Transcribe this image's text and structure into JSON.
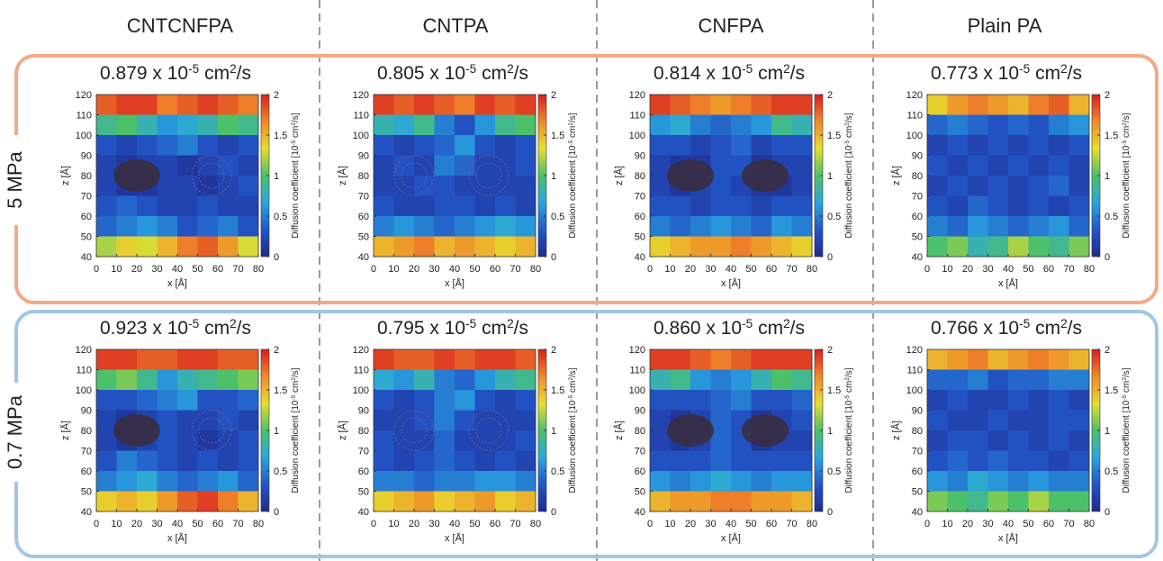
{
  "columns": [
    "CNTCNFPA",
    "CNTPA",
    "CNFPA",
    "Plain PA"
  ],
  "rows": [
    "5 MPa",
    "0.7 MPa"
  ],
  "chart_data": [
    {
      "type": "heatmap",
      "title": [
        "0.879 x 10",
        "-5",
        " cm",
        "2",
        "/s"
      ],
      "xlabel": "x [Å]",
      "ylabel": "z [Å]",
      "x": [
        5,
        15,
        25,
        35,
        45,
        55,
        65,
        75
      ],
      "y": [
        115,
        105,
        95,
        85,
        75,
        65,
        55,
        45
      ],
      "values": [
        [
          1.8,
          1.9,
          1.9,
          1.7,
          1.8,
          1.9,
          1.8,
          1.7
        ],
        [
          0.9,
          1.0,
          0.8,
          0.6,
          0.7,
          0.8,
          1.0,
          0.9
        ],
        [
          0.3,
          0.2,
          0.3,
          0.4,
          0.5,
          0.3,
          0.2,
          0.3
        ],
        [
          0.2,
          0.1,
          0.2,
          0.2,
          0.1,
          0.2,
          0.3,
          0.2
        ],
        [
          0.2,
          0.1,
          0.1,
          0.2,
          0.2,
          0.1,
          0.2,
          0.3
        ],
        [
          0.3,
          0.4,
          0.3,
          0.2,
          0.2,
          0.3,
          0.2,
          0.2
        ],
        [
          0.4,
          0.5,
          0.6,
          0.5,
          0.3,
          0.4,
          0.5,
          0.3
        ],
        [
          1.2,
          1.4,
          1.3,
          1.5,
          1.7,
          1.8,
          1.6,
          1.3
        ]
      ],
      "xlim": [
        0,
        80
      ],
      "xticks": [
        0,
        10,
        20,
        30,
        40,
        50,
        60,
        70,
        80
      ],
      "ylim": [
        40,
        120
      ],
      "yticks": [
        40,
        50,
        60,
        70,
        80,
        90,
        100,
        110,
        120
      ],
      "clim": [
        0,
        2
      ],
      "cticks": [
        0,
        0.5,
        1,
        1.5,
        2
      ],
      "clabel": [
        "Diffusion coefficient [10",
        "-5",
        " cm",
        "2",
        "/s]"
      ],
      "colormap": [
        "#1f2a8c",
        "#2256c8",
        "#2aa6de",
        "#4cc16a",
        "#e6df2e",
        "#f0892a",
        "#d71f1f"
      ]
    },
    {
      "type": "heatmap",
      "title": [
        "0.805 x 10",
        "-5",
        " cm",
        "2",
        "/s"
      ],
      "xlabel": "x [Å]",
      "ylabel": "z [Å]",
      "x": [
        5,
        15,
        25,
        35,
        45,
        55,
        65,
        75
      ],
      "y": [
        115,
        105,
        95,
        85,
        75,
        65,
        55,
        45
      ],
      "values": [
        [
          1.9,
          1.8,
          1.9,
          1.8,
          1.7,
          1.9,
          1.8,
          1.9
        ],
        [
          0.8,
          0.7,
          0.9,
          0.5,
          0.3,
          0.6,
          0.9,
          1.0
        ],
        [
          0.3,
          0.2,
          0.3,
          0.4,
          0.6,
          0.3,
          0.2,
          0.3
        ],
        [
          0.2,
          0.3,
          0.2,
          0.5,
          0.4,
          0.2,
          0.2,
          0.3
        ],
        [
          0.2,
          0.2,
          0.3,
          0.3,
          0.2,
          0.2,
          0.2,
          0.2
        ],
        [
          0.3,
          0.2,
          0.2,
          0.3,
          0.3,
          0.2,
          0.3,
          0.2
        ],
        [
          0.5,
          0.6,
          0.5,
          0.4,
          0.5,
          0.6,
          0.7,
          0.6
        ],
        [
          1.5,
          1.6,
          1.7,
          1.5,
          1.6,
          1.5,
          1.4,
          1.5
        ]
      ],
      "xlim": [
        0,
        80
      ],
      "xticks": [
        0,
        10,
        20,
        30,
        40,
        50,
        60,
        70,
        80
      ],
      "ylim": [
        40,
        120
      ],
      "yticks": [
        40,
        50,
        60,
        70,
        80,
        90,
        100,
        110,
        120
      ],
      "clim": [
        0,
        2
      ],
      "cticks": [
        0,
        0.5,
        1,
        1.5,
        2
      ],
      "clabel": [
        "Diffusion coefficient [10",
        "-5",
        " cm",
        "2",
        "/s]"
      ],
      "colormap": [
        "#1f2a8c",
        "#2256c8",
        "#2aa6de",
        "#4cc16a",
        "#e6df2e",
        "#f0892a",
        "#d71f1f"
      ]
    },
    {
      "type": "heatmap",
      "title": [
        "0.814 x 10",
        "-5",
        " cm",
        "2",
        "/s"
      ],
      "xlabel": "x [Å]",
      "ylabel": "z [Å]",
      "x": [
        5,
        15,
        25,
        35,
        45,
        55,
        65,
        75
      ],
      "y": [
        115,
        105,
        95,
        85,
        75,
        65,
        55,
        45
      ],
      "values": [
        [
          1.9,
          1.8,
          1.7,
          1.6,
          1.7,
          1.8,
          1.9,
          1.9
        ],
        [
          0.6,
          0.7,
          0.5,
          0.4,
          0.5,
          0.6,
          0.9,
          0.8
        ],
        [
          0.3,
          0.3,
          0.2,
          0.3,
          0.4,
          0.2,
          0.3,
          0.3
        ],
        [
          0.2,
          0.1,
          0.1,
          0.3,
          0.3,
          0.1,
          0.2,
          0.2
        ],
        [
          0.2,
          0.1,
          0.2,
          0.3,
          0.2,
          0.1,
          0.1,
          0.2
        ],
        [
          0.3,
          0.3,
          0.2,
          0.3,
          0.3,
          0.2,
          0.3,
          0.3
        ],
        [
          0.5,
          0.4,
          0.5,
          0.6,
          0.5,
          0.4,
          0.6,
          0.5
        ],
        [
          1.4,
          1.5,
          1.6,
          1.6,
          1.7,
          1.6,
          1.5,
          1.4
        ]
      ],
      "xlim": [
        0,
        80
      ],
      "xticks": [
        0,
        10,
        20,
        30,
        40,
        50,
        60,
        70,
        80
      ],
      "ylim": [
        40,
        120
      ],
      "yticks": [
        40,
        50,
        60,
        70,
        80,
        90,
        100,
        110,
        120
      ],
      "clim": [
        0,
        2
      ],
      "cticks": [
        0,
        0.5,
        1,
        1.5,
        2
      ],
      "clabel": [
        "Diffusion coefficient [10",
        "-5",
        " cm",
        "2",
        "/s]"
      ],
      "colormap": [
        "#1f2a8c",
        "#2256c8",
        "#2aa6de",
        "#4cc16a",
        "#e6df2e",
        "#f0892a",
        "#d71f1f"
      ]
    },
    {
      "type": "heatmap",
      "title": [
        "0.773 x 10",
        "-5",
        " cm",
        "2",
        "/s"
      ],
      "xlabel": "x [Å]",
      "ylabel": "z [Å]",
      "x": [
        5,
        15,
        25,
        35,
        45,
        55,
        65,
        75
      ],
      "y": [
        115,
        105,
        95,
        85,
        75,
        65,
        55,
        45
      ],
      "values": [
        [
          1.4,
          1.6,
          1.7,
          1.6,
          1.5,
          1.7,
          1.8,
          1.5
        ],
        [
          0.4,
          0.5,
          0.4,
          0.3,
          0.4,
          0.3,
          0.5,
          0.6
        ],
        [
          0.2,
          0.3,
          0.2,
          0.3,
          0.2,
          0.3,
          0.2,
          0.3
        ],
        [
          0.3,
          0.2,
          0.3,
          0.2,
          0.3,
          0.2,
          0.3,
          0.2
        ],
        [
          0.2,
          0.3,
          0.2,
          0.3,
          0.2,
          0.3,
          0.4,
          0.2
        ],
        [
          0.3,
          0.2,
          0.4,
          0.3,
          0.2,
          0.3,
          0.2,
          0.3
        ],
        [
          0.5,
          0.4,
          0.6,
          0.5,
          0.4,
          0.5,
          0.6,
          0.4
        ],
        [
          1.0,
          1.1,
          0.8,
          0.9,
          1.2,
          1.0,
          0.9,
          1.1
        ]
      ],
      "xlim": [
        0,
        80
      ],
      "xticks": [
        0,
        10,
        20,
        30,
        40,
        50,
        60,
        70,
        80
      ],
      "ylim": [
        40,
        120
      ],
      "yticks": [
        40,
        50,
        60,
        70,
        80,
        90,
        100,
        110,
        120
      ],
      "clim": [
        0,
        2
      ],
      "cticks": [
        0,
        0.5,
        1,
        1.5,
        2
      ],
      "clabel": [
        "Diffusion coefficient [10",
        "-5",
        " cm",
        "2",
        "/s]"
      ],
      "colormap": [
        "#1f2a8c",
        "#2256c8",
        "#2aa6de",
        "#4cc16a",
        "#e6df2e",
        "#f0892a",
        "#d71f1f"
      ]
    },
    {
      "type": "heatmap",
      "title": [
        "0.923 x 10",
        "-5",
        " cm",
        "2",
        "/s"
      ],
      "xlabel": "x [Å]",
      "ylabel": "z [Å]",
      "x": [
        5,
        15,
        25,
        35,
        45,
        55,
        65,
        75
      ],
      "y": [
        115,
        105,
        95,
        85,
        75,
        65,
        55,
        45
      ],
      "values": [
        [
          1.9,
          1.9,
          1.8,
          1.8,
          1.9,
          1.9,
          1.8,
          1.8
        ],
        [
          1.0,
          1.1,
          0.9,
          0.6,
          0.8,
          0.9,
          1.0,
          1.1
        ],
        [
          0.3,
          0.3,
          0.4,
          0.5,
          0.6,
          0.3,
          0.3,
          0.4
        ],
        [
          0.2,
          0.1,
          0.2,
          0.3,
          0.2,
          0.2,
          0.3,
          0.2
        ],
        [
          0.2,
          0.1,
          0.2,
          0.3,
          0.2,
          0.1,
          0.2,
          0.3
        ],
        [
          0.3,
          0.5,
          0.4,
          0.3,
          0.2,
          0.3,
          0.2,
          0.3
        ],
        [
          0.5,
          0.6,
          0.7,
          0.5,
          0.4,
          0.5,
          0.6,
          0.4
        ],
        [
          1.4,
          1.5,
          1.4,
          1.6,
          1.8,
          1.9,
          1.7,
          1.5
        ]
      ],
      "xlim": [
        0,
        80
      ],
      "xticks": [
        0,
        10,
        20,
        30,
        40,
        50,
        60,
        70,
        80
      ],
      "ylim": [
        40,
        120
      ],
      "yticks": [
        40,
        50,
        60,
        70,
        80,
        90,
        100,
        110,
        120
      ],
      "clim": [
        0,
        2
      ],
      "cticks": [
        0,
        0.5,
        1,
        1.5,
        2
      ],
      "clabel": [
        "Diffusion coefficient [10",
        "-5",
        " cm",
        "2",
        "/s]"
      ],
      "colormap": [
        "#1f2a8c",
        "#2256c8",
        "#2aa6de",
        "#4cc16a",
        "#e6df2e",
        "#f0892a",
        "#d71f1f"
      ]
    },
    {
      "type": "heatmap",
      "title": [
        "0.795 x 10",
        "-5",
        " cm",
        "2",
        "/s"
      ],
      "xlabel": "x [Å]",
      "ylabel": "z [Å]",
      "x": [
        5,
        15,
        25,
        35,
        45,
        55,
        65,
        75
      ],
      "y": [
        115,
        105,
        95,
        85,
        75,
        65,
        55,
        45
      ],
      "values": [
        [
          1.9,
          1.8,
          1.8,
          1.9,
          1.8,
          1.9,
          1.9,
          1.8
        ],
        [
          0.7,
          0.6,
          0.8,
          0.5,
          0.4,
          0.6,
          0.8,
          0.9
        ],
        [
          0.3,
          0.2,
          0.3,
          0.5,
          0.6,
          0.3,
          0.2,
          0.3
        ],
        [
          0.2,
          0.2,
          0.3,
          0.5,
          0.3,
          0.2,
          0.2,
          0.2
        ],
        [
          0.3,
          0.2,
          0.2,
          0.4,
          0.2,
          0.2,
          0.2,
          0.3
        ],
        [
          0.3,
          0.2,
          0.3,
          0.4,
          0.3,
          0.2,
          0.3,
          0.2
        ],
        [
          0.5,
          0.5,
          0.4,
          0.5,
          0.5,
          0.6,
          0.6,
          0.5
        ],
        [
          1.4,
          1.5,
          1.6,
          1.4,
          1.5,
          1.6,
          1.4,
          1.5
        ]
      ],
      "xlim": [
        0,
        80
      ],
      "xticks": [
        0,
        10,
        20,
        30,
        40,
        50,
        60,
        70,
        80
      ],
      "ylim": [
        40,
        120
      ],
      "yticks": [
        40,
        50,
        60,
        70,
        80,
        90,
        100,
        110,
        120
      ],
      "clim": [
        0,
        2
      ],
      "cticks": [
        0,
        0.5,
        1,
        1.5,
        2
      ],
      "clabel": [
        "Diffusion coefficient [10",
        "-5",
        " cm",
        "2",
        "/s]"
      ],
      "colormap": [
        "#1f2a8c",
        "#2256c8",
        "#2aa6de",
        "#4cc16a",
        "#e6df2e",
        "#f0892a",
        "#d71f1f"
      ]
    },
    {
      "type": "heatmap",
      "title": [
        "0.860 x 10",
        "-5",
        " cm",
        "2",
        "/s"
      ],
      "xlabel": "x [Å]",
      "ylabel": "z [Å]",
      "x": [
        5,
        15,
        25,
        35,
        45,
        55,
        65,
        75
      ],
      "y": [
        115,
        105,
        95,
        85,
        75,
        65,
        55,
        45
      ],
      "values": [
        [
          1.9,
          1.9,
          1.8,
          1.7,
          1.8,
          1.9,
          1.9,
          1.9
        ],
        [
          0.8,
          0.9,
          0.6,
          0.5,
          0.6,
          0.8,
          1.0,
          0.9
        ],
        [
          0.3,
          0.3,
          0.3,
          0.4,
          0.5,
          0.3,
          0.3,
          0.4
        ],
        [
          0.2,
          0.1,
          0.2,
          0.4,
          0.3,
          0.1,
          0.2,
          0.3
        ],
        [
          0.2,
          0.1,
          0.2,
          0.4,
          0.3,
          0.1,
          0.2,
          0.2
        ],
        [
          0.3,
          0.3,
          0.3,
          0.4,
          0.3,
          0.3,
          0.3,
          0.3
        ],
        [
          0.6,
          0.5,
          0.6,
          0.7,
          0.6,
          0.5,
          0.6,
          0.6
        ],
        [
          1.5,
          1.6,
          1.6,
          1.7,
          1.7,
          1.6,
          1.6,
          1.5
        ]
      ],
      "xlim": [
        0,
        80
      ],
      "xticks": [
        0,
        10,
        20,
        30,
        40,
        50,
        60,
        70,
        80
      ],
      "ylim": [
        40,
        120
      ],
      "yticks": [
        40,
        50,
        60,
        70,
        80,
        90,
        100,
        110,
        120
      ],
      "clim": [
        0,
        2
      ],
      "cticks": [
        0,
        0.5,
        1,
        1.5,
        2
      ],
      "clabel": [
        "Diffusion coefficient [10",
        "-5",
        " cm",
        "2",
        "/s]"
      ],
      "colormap": [
        "#1f2a8c",
        "#2256c8",
        "#2aa6de",
        "#4cc16a",
        "#e6df2e",
        "#f0892a",
        "#d71f1f"
      ]
    },
    {
      "type": "heatmap",
      "title": [
        "0.766 x 10",
        "-5",
        " cm",
        "2",
        "/s"
      ],
      "xlabel": "x [Å]",
      "ylabel": "z [Å]",
      "x": [
        5,
        15,
        25,
        35,
        45,
        55,
        65,
        75
      ],
      "y": [
        115,
        105,
        95,
        85,
        75,
        65,
        55,
        45
      ],
      "values": [
        [
          1.5,
          1.6,
          1.7,
          1.5,
          1.6,
          1.7,
          1.6,
          1.5
        ],
        [
          0.4,
          0.4,
          0.5,
          0.3,
          0.4,
          0.4,
          0.5,
          0.5
        ],
        [
          0.2,
          0.3,
          0.2,
          0.2,
          0.3,
          0.2,
          0.3,
          0.2
        ],
        [
          0.3,
          0.2,
          0.2,
          0.3,
          0.2,
          0.2,
          0.3,
          0.3
        ],
        [
          0.2,
          0.3,
          0.3,
          0.2,
          0.3,
          0.2,
          0.3,
          0.2
        ],
        [
          0.3,
          0.4,
          0.3,
          0.4,
          0.3,
          0.3,
          0.2,
          0.3
        ],
        [
          0.6,
          0.5,
          0.7,
          0.6,
          0.5,
          0.6,
          0.5,
          0.5
        ],
        [
          1.1,
          1.0,
          0.9,
          1.1,
          1.0,
          1.2,
          1.0,
          1.0
        ]
      ],
      "xlim": [
        0,
        80
      ],
      "xticks": [
        0,
        10,
        20,
        30,
        40,
        50,
        60,
        70,
        80
      ],
      "ylim": [
        40,
        120
      ],
      "yticks": [
        40,
        50,
        60,
        70,
        80,
        90,
        100,
        110,
        120
      ],
      "clim": [
        0,
        2
      ],
      "cticks": [
        0,
        0.5,
        1,
        1.5,
        2
      ],
      "clabel": [
        "Diffusion coefficient [10",
        "-5",
        " cm",
        "2",
        "/s]"
      ],
      "colormap": [
        "#1f2a8c",
        "#2256c8",
        "#2aa6de",
        "#4cc16a",
        "#e6df2e",
        "#f0892a",
        "#d71f1f"
      ]
    }
  ]
}
